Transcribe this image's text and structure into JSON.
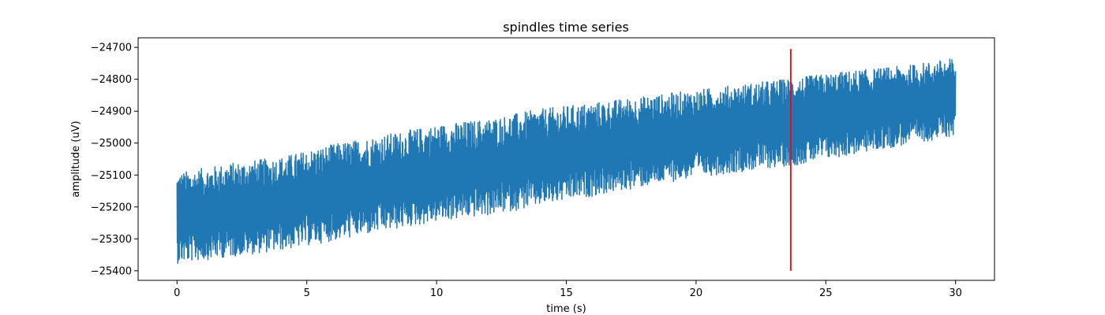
{
  "chart_data": {
    "type": "line",
    "title": "spindles time series",
    "xlabel": "time (s)",
    "ylabel": "amplitude (uV)",
    "xlim": [
      -1.5,
      31.5
    ],
    "ylim": [
      -25430,
      -24670
    ],
    "xticks": [
      0,
      5,
      10,
      15,
      20,
      25,
      30
    ],
    "xtick_labels": [
      "0",
      "5",
      "10",
      "15",
      "20",
      "25",
      "30"
    ],
    "yticks": [
      -25400,
      -25300,
      -25200,
      -25100,
      -25000,
      -24900,
      -24800,
      -24700
    ],
    "ytick_labels": [
      "−25400",
      "−25300",
      "−25200",
      "−25100",
      "−25000",
      "−24900",
      "−24800",
      "−24700"
    ],
    "grid": false,
    "series": [
      {
        "color": "#1f77b4",
        "x": [
          0,
          2,
          4,
          6,
          8,
          10,
          12,
          14,
          16,
          18,
          20,
          22,
          24,
          26,
          28,
          30
        ],
        "y_upper": [
          -25090,
          -25060,
          -25040,
          -25000,
          -24970,
          -24940,
          -24920,
          -24890,
          -24870,
          -24850,
          -24830,
          -24810,
          -24790,
          -24770,
          -24755,
          -24730
        ],
        "y_lower": [
          -25380,
          -25360,
          -25340,
          -25310,
          -25280,
          -25250,
          -25230,
          -25200,
          -25170,
          -25140,
          -25110,
          -25090,
          -25070,
          -25040,
          -25010,
          -24980
        ]
      }
    ],
    "vline": {
      "x": 23.65,
      "ymin": -25400,
      "ymax": -24705,
      "color": "#ff0000"
    }
  }
}
